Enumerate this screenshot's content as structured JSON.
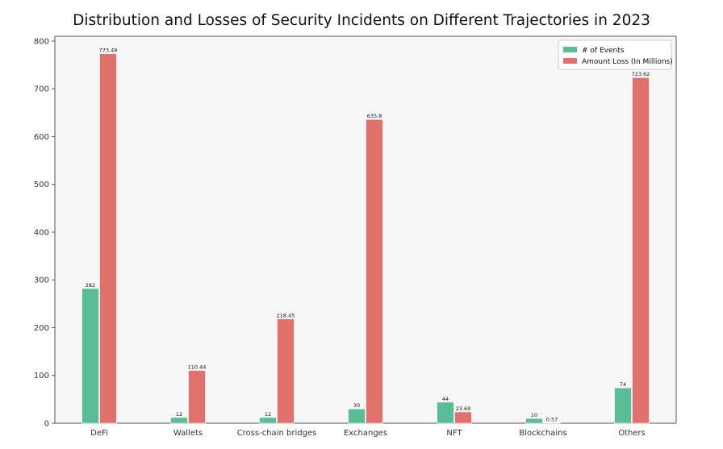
{
  "chart_data": {
    "type": "bar",
    "title": "Distribution and Losses of Security Incidents on Different Trajectories in 2023",
    "xlabel": "",
    "ylabel": "",
    "categories": [
      "DeFi",
      "Wallets",
      "Cross-chain bridges",
      "Exchanges",
      "NFT",
      "Blockchains",
      "Others"
    ],
    "series": [
      {
        "name": "# of Events",
        "color": "#5bbd98",
        "values": [
          282,
          12,
          12,
          30,
          44,
          10,
          74
        ],
        "labels": [
          "282",
          "12",
          "12",
          "30",
          "44",
          "10",
          "74"
        ]
      },
      {
        "name": "Amount Loss (In Millions)",
        "color": "#e0716c",
        "values": [
          773.49,
          110.44,
          218.45,
          635.8,
          23.69,
          0.57,
          723.62
        ],
        "labels": [
          "773.49",
          "110.44",
          "218.45",
          "635.8",
          "23.69",
          "0.57",
          "723.62"
        ]
      }
    ],
    "ylim": [
      0,
      810
    ],
    "yticks": [
      0,
      100,
      200,
      300,
      400,
      500,
      600,
      700,
      800
    ],
    "grid": false,
    "legend_position": "top-right",
    "background": "#f7f7f7"
  }
}
